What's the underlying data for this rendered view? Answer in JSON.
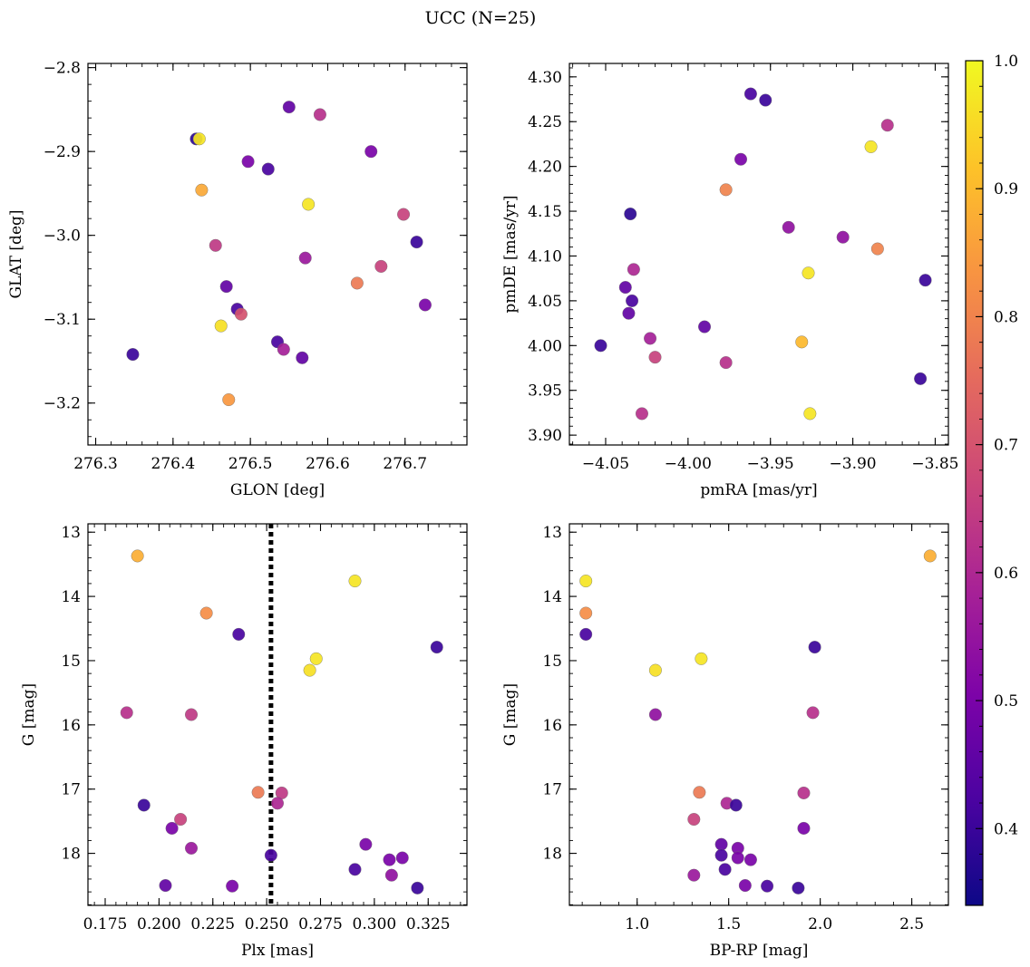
{
  "title": "UCC (N=25)",
  "colorbar": {
    "min": 0.34,
    "max": 1.0,
    "ticks": [
      0.4,
      0.5,
      0.6,
      0.7,
      0.8,
      0.9,
      1.0
    ],
    "colormap": "plasma"
  },
  "chart_data": [
    {
      "type": "scatter",
      "id": "glon-glat",
      "xlabel": "GLON [deg]",
      "ylabel": "GLAT [deg]",
      "xlim": [
        276.29,
        276.78
      ],
      "ylim": [
        -3.25,
        -2.795
      ],
      "xticks": [
        276.3,
        276.4,
        276.5,
        276.6,
        276.7
      ],
      "yticks": [
        -2.8,
        -2.9,
        -3.0,
        -3.1,
        -3.2
      ],
      "x": [
        276.55,
        276.59,
        276.43,
        276.434,
        276.497,
        276.523,
        276.656,
        276.437,
        276.575,
        276.698,
        276.715,
        276.455,
        276.571,
        276.669,
        276.638,
        276.469,
        276.726,
        276.483,
        276.488,
        276.462,
        276.535,
        276.543,
        276.567,
        276.348,
        276.472
      ],
      "y": [
        -2.847,
        -2.856,
        -2.885,
        -2.885,
        -2.912,
        -2.921,
        -2.9,
        -2.946,
        -2.963,
        -2.975,
        -3.008,
        -3.012,
        -3.027,
        -3.037,
        -3.057,
        -3.061,
        -3.083,
        -3.088,
        -3.094,
        -3.108,
        -3.127,
        -3.136,
        -3.146,
        -3.142,
        -3.196
      ],
      "color": [
        0.46,
        0.62,
        0.38,
        0.97,
        0.5,
        0.42,
        0.5,
        0.87,
        0.97,
        0.66,
        0.4,
        0.64,
        0.56,
        0.66,
        0.78,
        0.46,
        0.5,
        0.42,
        0.7,
        0.96,
        0.42,
        0.58,
        0.46,
        0.4,
        0.84
      ]
    },
    {
      "type": "scatter",
      "id": "pmra-pmde",
      "xlabel": "pmRA [mas/yr]",
      "ylabel": "pmDE [mas/yr]",
      "xlim": [
        -4.072,
        -3.842
      ],
      "ylim": [
        3.889,
        4.315
      ],
      "xticks": [
        -4.05,
        -4.0,
        -3.95,
        -3.9,
        -3.85
      ],
      "yticks": [
        3.9,
        3.95,
        4.0,
        4.05,
        4.1,
        4.15,
        4.2,
        4.25,
        4.3
      ],
      "x": [
        -3.962,
        -3.953,
        -3.879,
        -3.889,
        -3.968,
        -3.977,
        -4.035,
        -3.939,
        -3.906,
        -3.885,
        -3.927,
        -4.033,
        -3.856,
        -4.038,
        -4.034,
        -4.036,
        -3.99,
        -4.053,
        -4.023,
        -3.931,
        -4.02,
        -3.977,
        -3.859,
        -4.028,
        -3.926
      ],
      "y": [
        4.281,
        4.274,
        4.246,
        4.222,
        4.208,
        4.174,
        4.147,
        4.132,
        4.121,
        4.108,
        4.081,
        4.085,
        4.073,
        4.065,
        4.05,
        4.036,
        4.021,
        4.0,
        4.008,
        4.004,
        3.987,
        3.981,
        3.963,
        3.924,
        3.924
      ],
      "color": [
        0.42,
        0.4,
        0.62,
        0.97,
        0.5,
        0.8,
        0.38,
        0.54,
        0.54,
        0.8,
        0.97,
        0.6,
        0.4,
        0.46,
        0.42,
        0.46,
        0.46,
        0.4,
        0.58,
        0.9,
        0.66,
        0.62,
        0.4,
        0.62,
        0.97
      ]
    },
    {
      "type": "scatter",
      "id": "plx-g",
      "xlabel": "Plx [mas]",
      "ylabel": "G [mag]",
      "xlim": [
        0.167,
        0.343
      ],
      "ylim": [
        18.81,
        12.87
      ],
      "y_inverted": true,
      "xticks": [
        0.175,
        0.2,
        0.225,
        0.25,
        0.275,
        0.3,
        0.325
      ],
      "yticks": [
        13,
        14,
        15,
        16,
        17,
        18
      ],
      "vline": 0.252,
      "x": [
        0.19,
        0.291,
        0.222,
        0.237,
        0.273,
        0.27,
        0.329,
        0.185,
        0.215,
        0.246,
        0.257,
        0.255,
        0.193,
        0.21,
        0.206,
        0.215,
        0.296,
        0.252,
        0.313,
        0.307,
        0.308,
        0.291,
        0.203,
        0.234,
        0.32
      ],
      "y": [
        13.37,
        13.76,
        14.26,
        14.59,
        14.97,
        15.15,
        14.79,
        15.81,
        15.84,
        17.05,
        17.06,
        17.22,
        17.25,
        17.47,
        17.61,
        17.92,
        17.86,
        18.03,
        18.07,
        18.1,
        18.34,
        18.25,
        18.5,
        18.51,
        18.54
      ],
      "color": [
        0.88,
        0.97,
        0.82,
        0.42,
        0.97,
        0.96,
        0.4,
        0.62,
        0.64,
        0.78,
        0.64,
        0.6,
        0.4,
        0.66,
        0.5,
        0.56,
        0.5,
        0.42,
        0.5,
        0.5,
        0.54,
        0.42,
        0.46,
        0.5,
        0.4
      ]
    },
    {
      "type": "scatter",
      "id": "bprp-g",
      "xlabel": "BP-RP [mag]",
      "ylabel": "G [mag]",
      "xlim": [
        0.63,
        2.7
      ],
      "ylim": [
        18.81,
        12.87
      ],
      "y_inverted": true,
      "xticks": [
        1.0,
        1.5,
        2.0,
        2.5
      ],
      "yticks": [
        13,
        14,
        15,
        16,
        17,
        18
      ],
      "x": [
        2.6,
        0.72,
        0.72,
        0.72,
        1.35,
        1.1,
        1.97,
        1.1,
        1.96,
        1.34,
        1.91,
        1.49,
        1.54,
        1.31,
        1.91,
        1.46,
        1.55,
        1.46,
        1.55,
        1.62,
        1.31,
        1.48,
        1.59,
        1.71,
        1.88
      ],
      "y": [
        13.37,
        13.76,
        14.26,
        14.59,
        14.97,
        15.15,
        14.79,
        15.84,
        15.81,
        17.05,
        17.06,
        17.22,
        17.25,
        17.47,
        17.61,
        17.86,
        17.92,
        18.03,
        18.07,
        18.1,
        18.34,
        18.25,
        18.5,
        18.51,
        18.54
      ],
      "color": [
        0.88,
        0.97,
        0.82,
        0.42,
        0.97,
        0.96,
        0.4,
        0.54,
        0.62,
        0.78,
        0.62,
        0.6,
        0.4,
        0.66,
        0.5,
        0.46,
        0.5,
        0.42,
        0.5,
        0.5,
        0.56,
        0.42,
        0.5,
        0.42,
        0.4
      ]
    }
  ]
}
